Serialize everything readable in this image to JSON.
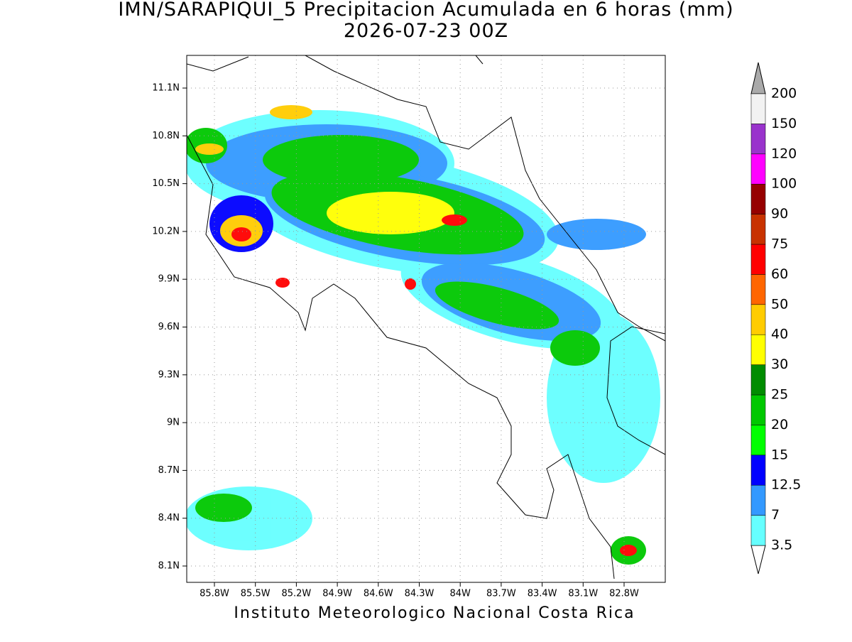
{
  "title": "IMN/SARAPIQUI_5 Precipitacion Acumulada en 6 horas (mm)",
  "subtitle": "2026-07-23 00Z",
  "lat_ticks": [
    "11.1N",
    "10.8N",
    "10.5N",
    "10.2N",
    "9.9N",
    "9.6N",
    "9.3N",
    "9N",
    "8.7N",
    "8.4N",
    "8.1N"
  ],
  "lon_ticks": [
    "85.8W",
    "85.5W",
    "85.2W",
    "84.9W",
    "84.6W",
    "84.3W",
    "84W",
    "83.7W",
    "83.4W",
    "83.1W",
    "82.8W"
  ],
  "colorbar": {
    "labels": [
      "3.5",
      "7",
      "12.5",
      "15",
      "20",
      "25",
      "30",
      "40",
      "50",
      "60",
      "75",
      "90",
      "100",
      "120",
      "150",
      "200"
    ],
    "colors": [
      "#66ffff",
      "#3399ff",
      "#0000ff",
      "#00ff00",
      "#00c800",
      "#008c00",
      "#ffff00",
      "#ffcc00",
      "#ff6600",
      "#ff0000",
      "#c83200",
      "#960000",
      "#ff00ff",
      "#9933cc",
      "#f2f2f2"
    ],
    "under_color": "#ffffff",
    "over_color": "#aaaaaa"
  },
  "footer": "Instituto Meteorologico Nacional Costa Rica"
}
